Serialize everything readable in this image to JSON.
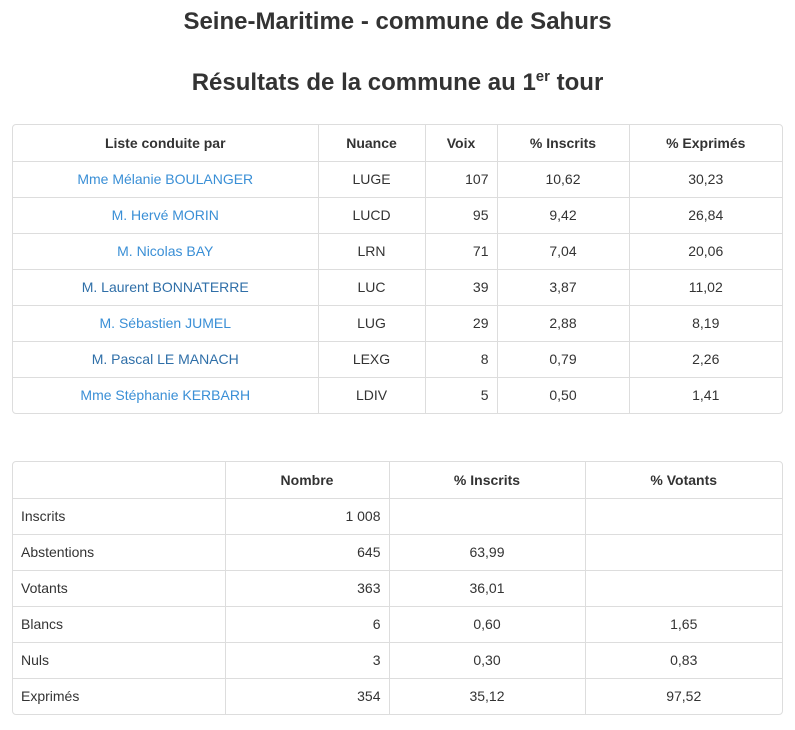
{
  "title": "Seine-Maritime - commune de Sahurs",
  "subtitle": {
    "text": "Résultats de la commune au 1",
    "sup": "er",
    "after": " tour"
  },
  "results": {
    "headers": [
      "Liste conduite par",
      "Nuance",
      "Voix",
      "% Inscrits",
      "% Exprimés"
    ],
    "rows": [
      [
        "Mme Mélanie BOULANGER",
        "LUGE",
        "107",
        "10,62",
        "30,23"
      ],
      [
        "M. Hervé MORIN",
        "LUCD",
        "95",
        "9,42",
        "26,84"
      ],
      [
        "M. Nicolas BAY",
        "LRN",
        "71",
        "7,04",
        "20,06"
      ],
      [
        "M. Laurent BONNATERRE",
        "LUC",
        "39",
        "3,87",
        "11,02"
      ],
      [
        "M. Sébastien JUMEL",
        "LUG",
        "29",
        "2,88",
        "8,19"
      ],
      [
        "M. Pascal LE MANACH",
        "LEXG",
        "8",
        "0,79",
        "2,26"
      ],
      [
        "Mme Stéphanie KERBARH",
        "LDIV",
        "5",
        "0,50",
        "1,41"
      ]
    ]
  },
  "stats": {
    "headers": [
      "",
      "Nombre",
      "% Inscrits",
      "% Votants"
    ],
    "rows": [
      [
        "Inscrits",
        "1 008",
        "",
        ""
      ],
      [
        "Abstentions",
        "645",
        "63,99",
        ""
      ],
      [
        "Votants",
        "363",
        "36,01",
        ""
      ],
      [
        "Blancs",
        "6",
        "0,60",
        "1,65"
      ],
      [
        "Nuls",
        "3",
        "0,30",
        "0,83"
      ],
      [
        "Exprimés",
        "354",
        "35,12",
        "97,52"
      ]
    ]
  },
  "colors": {
    "link": "#3a8fd6",
    "visited_link": "#2f6fa8",
    "border": "#dddddd"
  }
}
